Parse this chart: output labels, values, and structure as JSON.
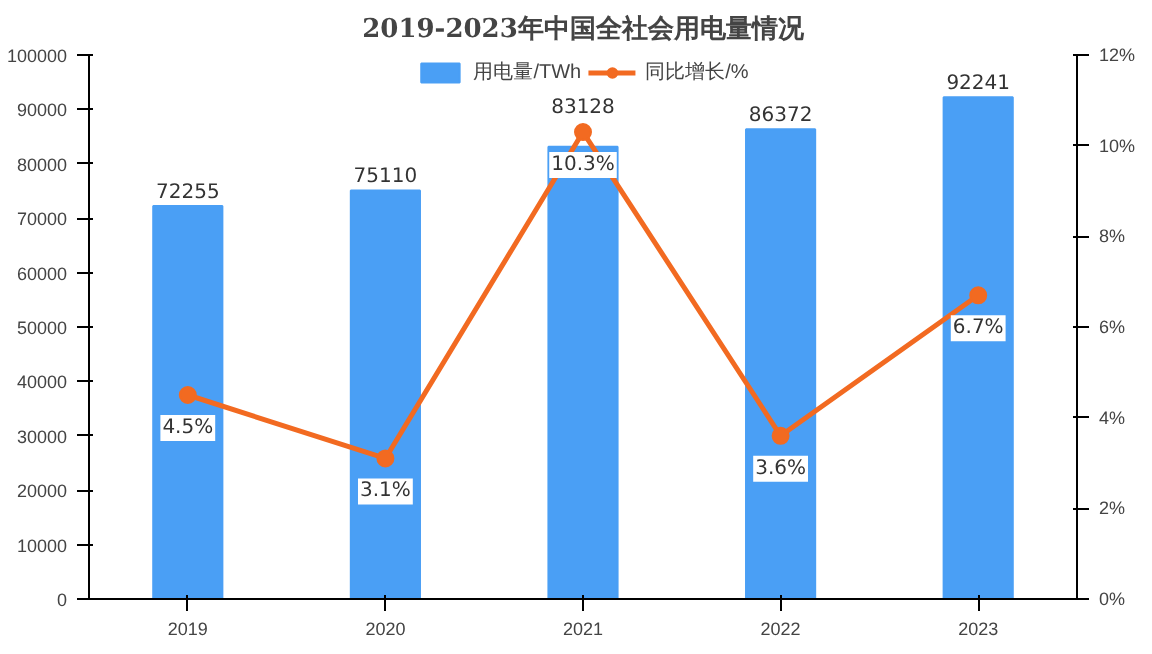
{
  "chart_data": {
    "type": "bar",
    "title": "2019-2023年中国全社会用电量情况",
    "categories": [
      "2019",
      "2020",
      "2021",
      "2022",
      "2023"
    ],
    "series": [
      {
        "name": "用电量/TWh",
        "type": "bar",
        "color": "#4a9ff5",
        "values": [
          72255,
          75110,
          83128,
          86372,
          92241
        ],
        "data_labels": true
      },
      {
        "name": "同比增长/%",
        "type": "line",
        "axis": "y2",
        "color": "#f26a21",
        "values": [
          4.5,
          3.1,
          10.3,
          3.6,
          6.7
        ],
        "value_labels": [
          "4.5%",
          "3.1%",
          "10.3%",
          "3.6%",
          "6.7%"
        ],
        "marker": "circle"
      }
    ],
    "ylim": [
      0,
      100000
    ],
    "yticks": [
      0,
      10000,
      20000,
      30000,
      40000,
      50000,
      60000,
      70000,
      80000,
      90000,
      100000
    ],
    "y2lim": [
      0,
      12
    ],
    "y2ticks": [
      {
        "value": 0,
        "label": "0%"
      },
      {
        "value": 2,
        "label": "2%"
      },
      {
        "value": 4,
        "label": "4%"
      },
      {
        "value": 6,
        "label": "6%"
      },
      {
        "value": 8,
        "label": "8%"
      },
      {
        "value": 10,
        "label": "10%"
      },
      {
        "value": 12,
        "label": "12%"
      }
    ],
    "grid": false,
    "legend": "top"
  }
}
